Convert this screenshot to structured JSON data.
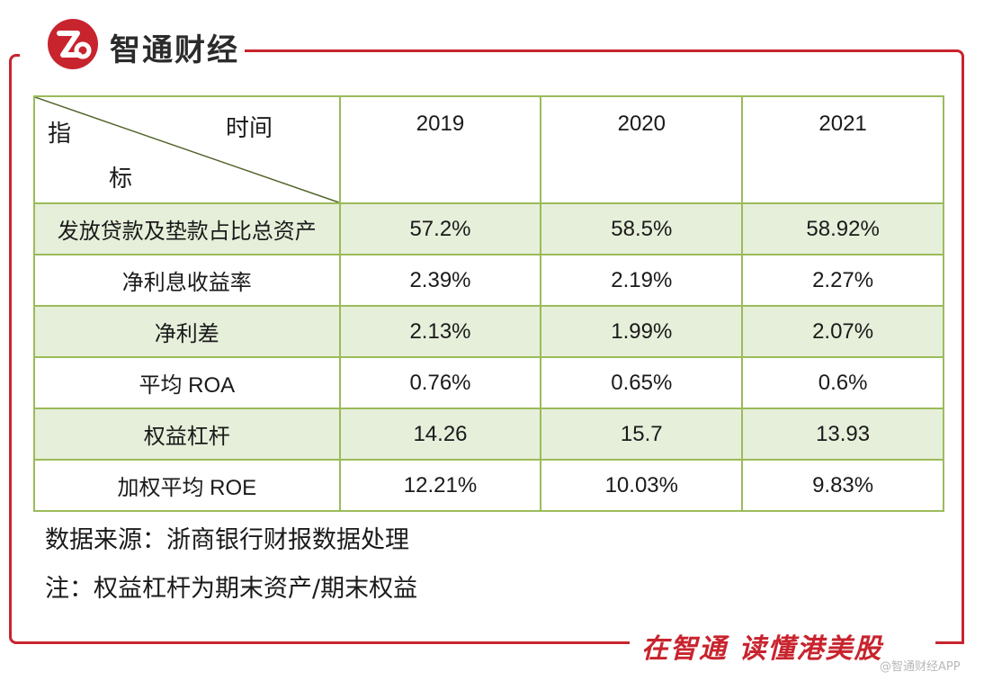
{
  "brand": {
    "name": "智通财经",
    "slogan": "在智通 读懂港美股",
    "watermark": "@智通财经APP",
    "colors": {
      "accent": "#c8242e",
      "table_border": "#9bbb59",
      "row_shade": "#e6efda"
    }
  },
  "table": {
    "corner_top": "时间",
    "corner_left_1": "指",
    "corner_left_2": "标",
    "years": [
      "2019",
      "2020",
      "2021"
    ],
    "rows": [
      {
        "label": "发放贷款及垫款占比总资产",
        "values": [
          "57.2%",
          "58.5%",
          "58.92%"
        ]
      },
      {
        "label": "净利息收益率",
        "values": [
          "2.39%",
          "2.19%",
          "2.27%"
        ]
      },
      {
        "label": "净利差",
        "values": [
          "2.13%",
          "1.99%",
          "2.07%"
        ]
      },
      {
        "label": "平均 ROA",
        "values": [
          "0.76%",
          "0.65%",
          "0.6%"
        ]
      },
      {
        "label": "权益杠杆",
        "values": [
          "14.26",
          "15.7",
          "13.93"
        ]
      },
      {
        "label": "加权平均 ROE",
        "values": [
          "12.21%",
          "10.03%",
          "9.83%"
        ]
      }
    ]
  },
  "notes": {
    "source": "数据来源：浙商银行财报数据处理",
    "remark": "注：权益杠杆为期末资产/期末权益"
  }
}
